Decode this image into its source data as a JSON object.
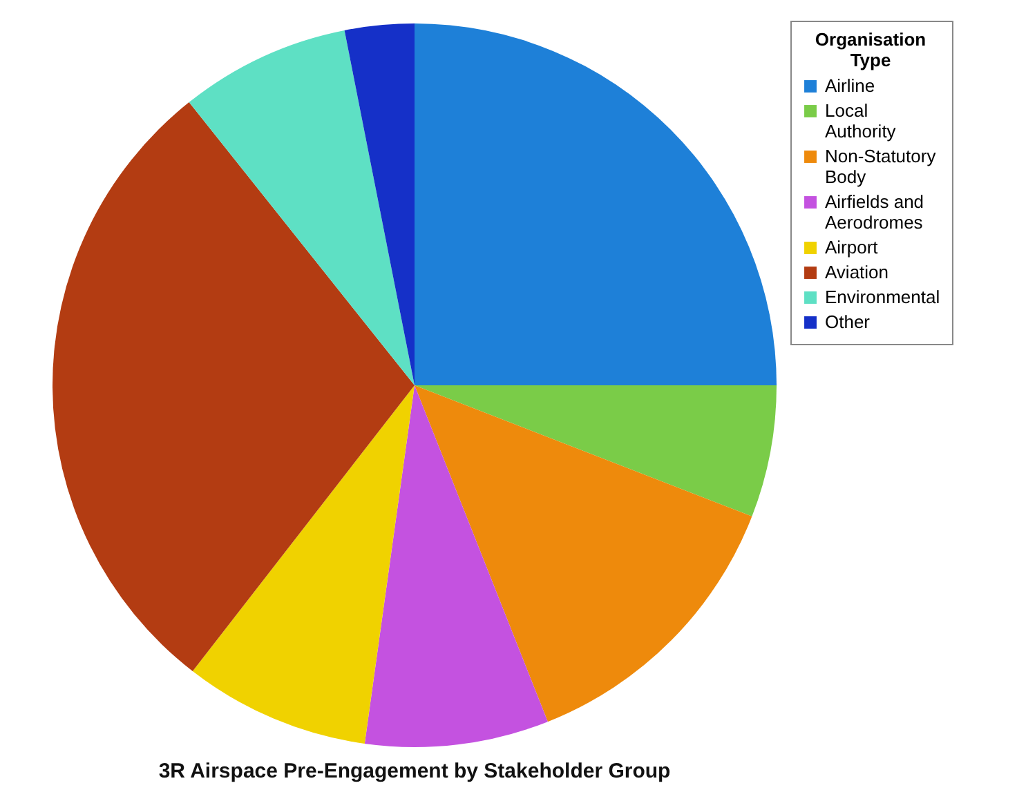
{
  "chart_data": {
    "type": "pie",
    "title": "3R Airspace Pre-Engagement by Stakeholder Group",
    "legend_title": "Organisation Type",
    "legend": "top right",
    "categories": [
      "Airline",
      "Local Authority",
      "Non-Statutory Body",
      "Airfields and Aerodromes",
      "Airport",
      "Aviation",
      "Environmental",
      "Other"
    ],
    "values": [
      25,
      5.9,
      13.1,
      8.2,
      8.3,
      28.8,
      7.6,
      3.1
    ],
    "colors": [
      "#1e80d8",
      "#7acc48",
      "#ee8a0c",
      "#c452e0",
      "#f0d200",
      "#b33c12",
      "#5ee0c4",
      "#1530c8"
    ]
  }
}
